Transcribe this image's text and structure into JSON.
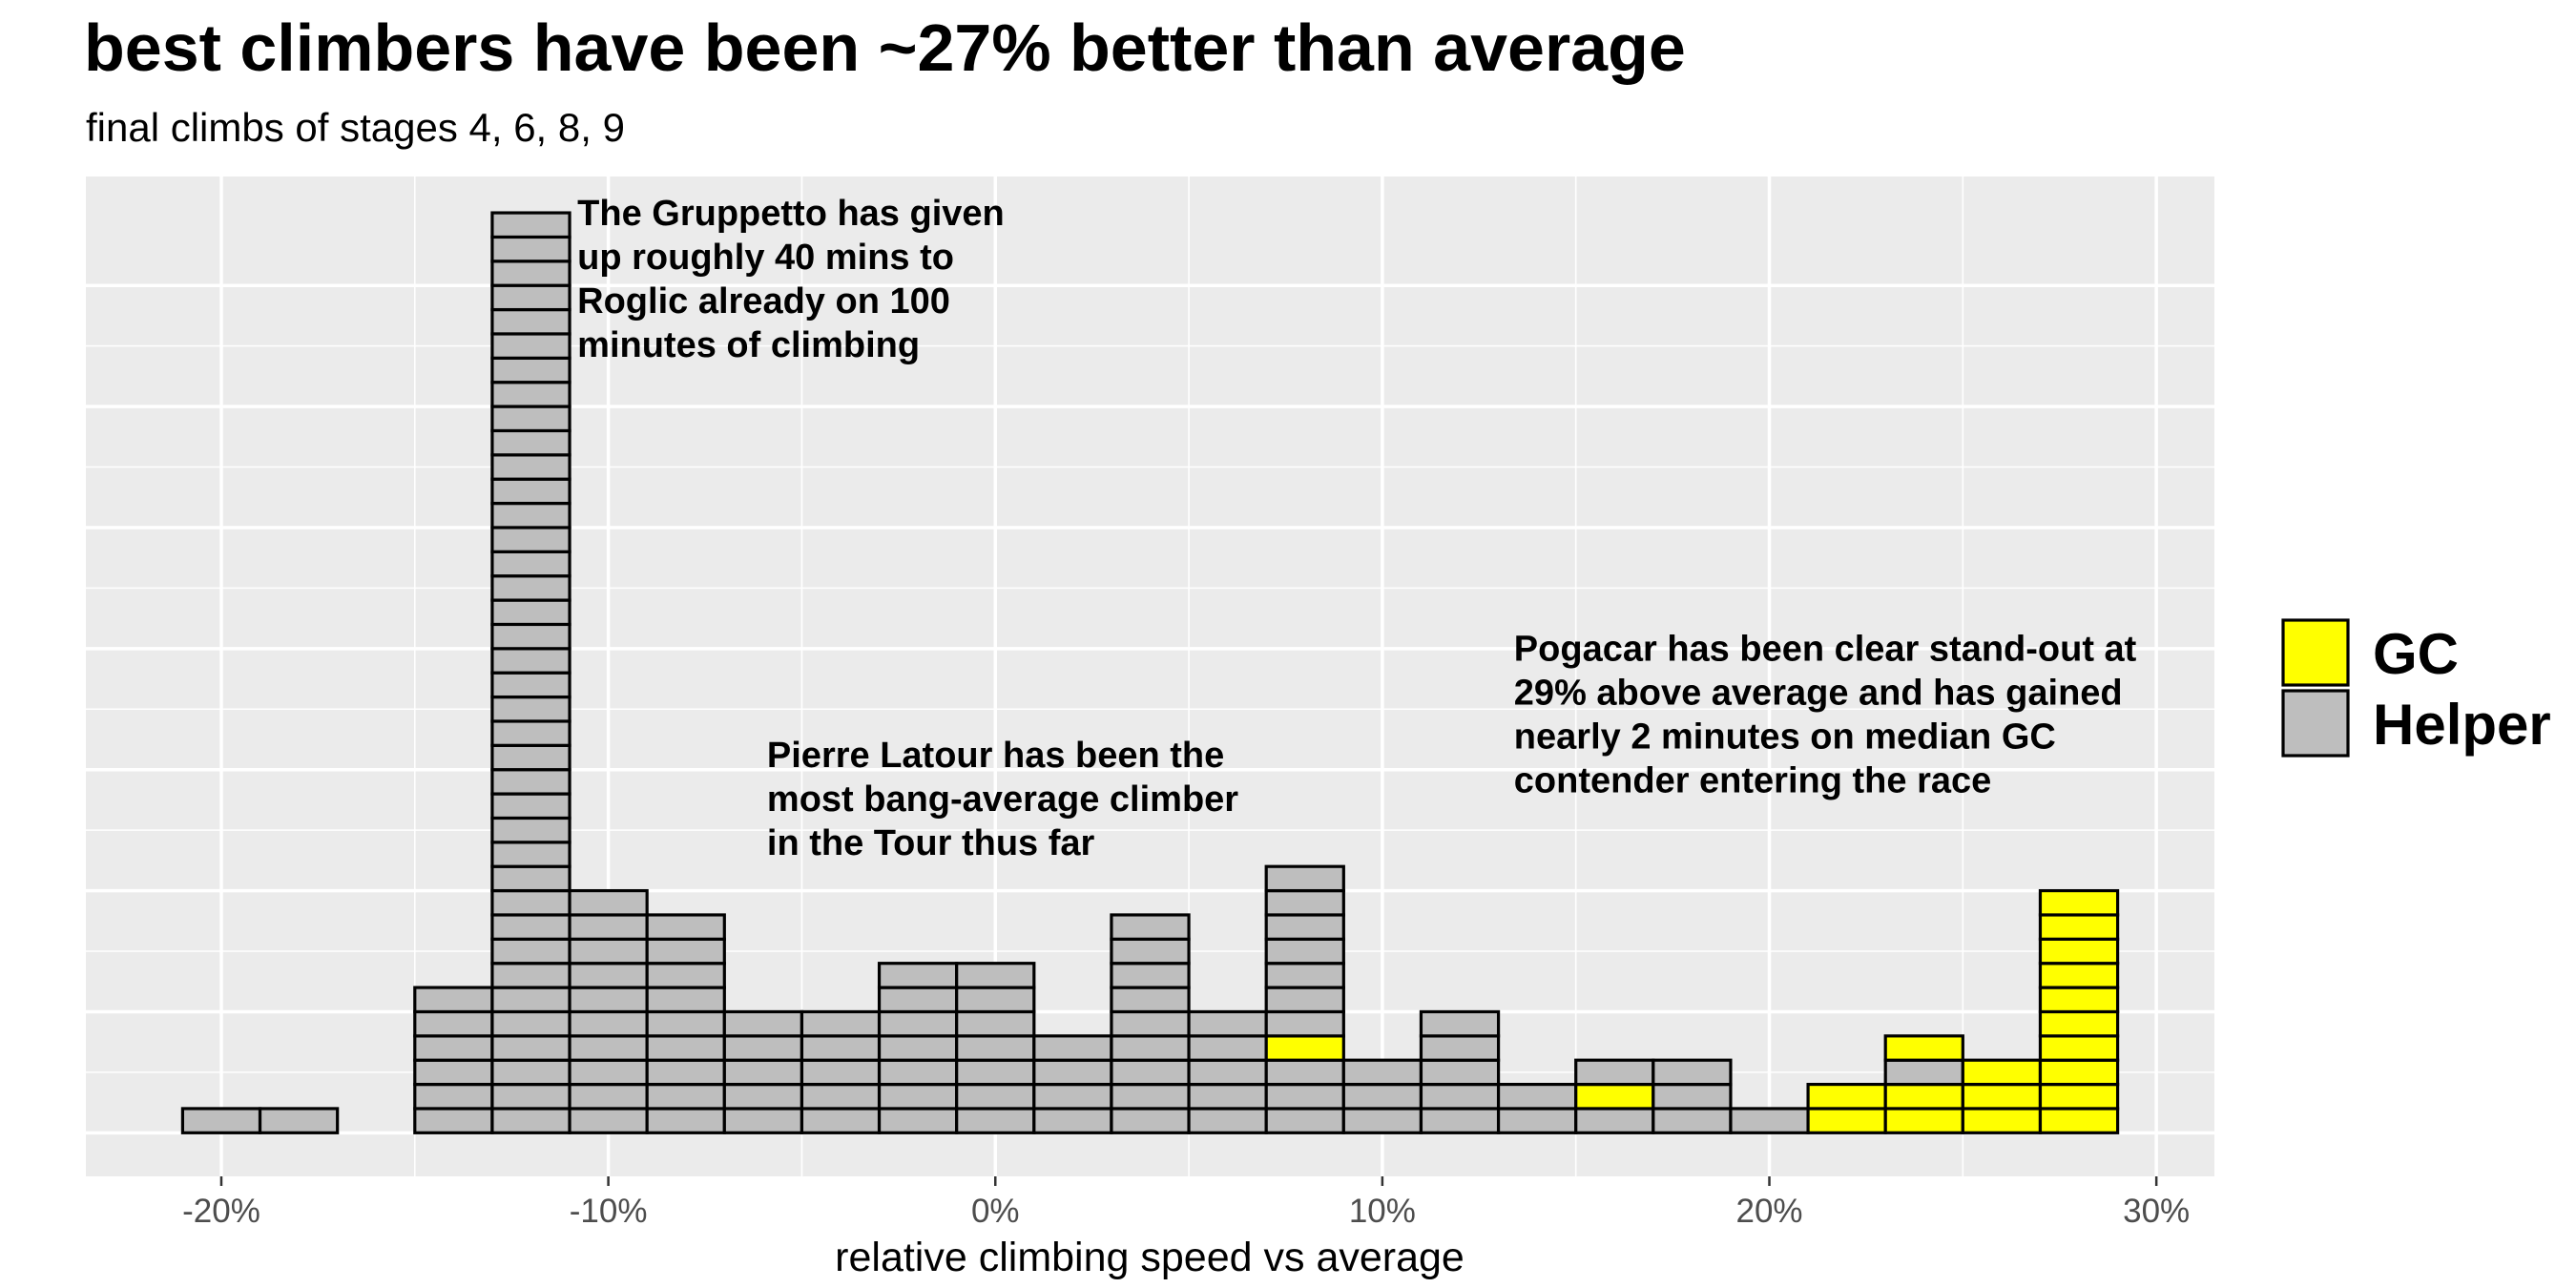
{
  "chart_data": {
    "type": "bar",
    "subtype": "dot-stacked histogram",
    "title": "best climbers have been ~27% better than average",
    "subtitle": "final climbs of stages 4, 6, 8, 9",
    "xlabel": "relative climbing speed vs average",
    "ylabel": "",
    "xlim": [
      -23.5,
      31.5
    ],
    "ylim": [
      -1.8,
      39.5
    ],
    "x_ticks": [
      -20,
      -10,
      0,
      10,
      20,
      30
    ],
    "x_tick_labels": [
      "-20%",
      "-10%",
      "0%",
      "10%",
      "20%",
      "30%"
    ],
    "grid": true,
    "bin_width": 2,
    "bins": [
      -20,
      -18,
      -14,
      -12,
      -10,
      -8,
      -6,
      -4,
      -2,
      0,
      2,
      4,
      6,
      8,
      10,
      12,
      14,
      16,
      18,
      20,
      22,
      24,
      26,
      28
    ],
    "series": [
      {
        "name": "Helper",
        "color": "#bebebe",
        "values": [
          1,
          1,
          6,
          38,
          10,
          9,
          5,
          5,
          7,
          7,
          4,
          9,
          5,
          10,
          3,
          5,
          2,
          2,
          3,
          1,
          0,
          1,
          0,
          0
        ]
      },
      {
        "name": "GC",
        "color": "#ffff00",
        "values": [
          0,
          0,
          0,
          0,
          0,
          0,
          0,
          0,
          0,
          0,
          0,
          0,
          0,
          1,
          0,
          0,
          0,
          1,
          0,
          0,
          2,
          3,
          3,
          10
        ]
      }
    ],
    "stack_order": [
      [],
      [],
      [],
      [],
      [],
      [],
      [],
      [],
      [],
      [],
      [],
      [],
      [],
      [
        "Helper",
        "Helper",
        "Helper",
        "GC",
        "Helper",
        "Helper",
        "Helper",
        "Helper",
        "Helper",
        "Helper",
        "Helper"
      ],
      [],
      [],
      [],
      [
        "Helper",
        "GC",
        "Helper"
      ],
      [],
      [],
      [],
      [
        "GC",
        "GC",
        "Helper",
        "GC"
      ],
      [],
      []
    ],
    "annotations": [
      {
        "x": -10.8,
        "y": 37.5,
        "lines": [
          "The Gruppetto has given",
          "up roughly 40 mins to",
          "Roglic already on 100",
          "minutes of climbing"
        ]
      },
      {
        "x": -5.9,
        "y": 15.1,
        "lines": [
          "Pierre Latour has been the",
          "most bang-average climber",
          "in the Tour thus far"
        ]
      },
      {
        "x": 13.4,
        "y": 19.5,
        "lines": [
          "Pogacar has been clear stand-out at",
          "29% above average and has gained",
          "nearly 2 minutes on median GC",
          "contender entering the race"
        ]
      }
    ],
    "legend": {
      "position": "right",
      "entries": [
        {
          "label": "GC",
          "color": "#ffff00"
        },
        {
          "label": "Helper",
          "color": "#bebebe"
        }
      ]
    }
  }
}
